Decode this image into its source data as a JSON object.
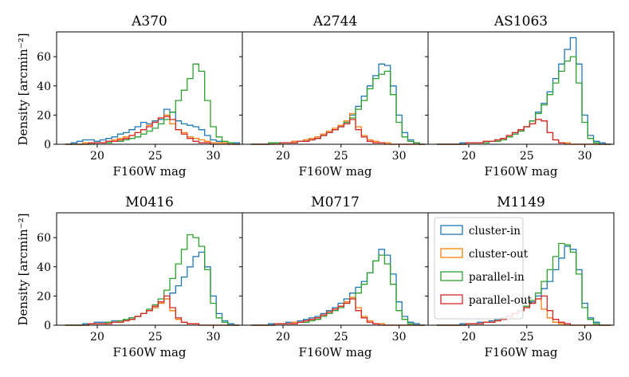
{
  "figure": {
    "xlabel": "F160W mag",
    "ylabel": "Density [arcmin⁻²]",
    "xticks": [
      20,
      25,
      30
    ],
    "yticks": [
      0,
      20,
      40,
      60
    ],
    "xlim": [
      16.5,
      32.5
    ],
    "ylim": [
      0,
      77
    ]
  },
  "legend": {
    "placement": "panel M1149, upper-left",
    "entries": [
      {
        "label": "cluster-in",
        "color": "#1f77b4"
      },
      {
        "label": "cluster-out",
        "color": "#ff7f0e"
      },
      {
        "label": "parallel-in",
        "color": "#2ca02c"
      },
      {
        "label": "parallel-out",
        "color": "#d62728"
      }
    ]
  },
  "chart_data": [
    {
      "type": "histogram-step",
      "title": "A370",
      "xlabel": "F160W mag",
      "ylabel": "Density [arcmin⁻²]",
      "x": [
        17.5,
        18.0,
        18.5,
        19.0,
        19.5,
        20.0,
        20.5,
        21.0,
        21.5,
        22.0,
        22.5,
        23.0,
        23.5,
        24.0,
        24.5,
        25.0,
        25.5,
        26.0,
        26.5,
        27.0,
        27.5,
        28.0,
        28.5,
        29.0,
        29.5,
        30.0,
        30.5,
        31.0,
        31.5,
        32.0
      ],
      "series": [
        {
          "name": "cluster-in",
          "color": "#1f77b4",
          "values": [
            0,
            1,
            2,
            3,
            3,
            2,
            3,
            4,
            5,
            7,
            8,
            10,
            12,
            15,
            14,
            16,
            17,
            24,
            22,
            16,
            14,
            13,
            12,
            10,
            6,
            3,
            2,
            1,
            1,
            1
          ]
        },
        {
          "name": "cluster-out",
          "color": "#ff7f0e",
          "values": [
            0,
            0,
            0,
            1,
            1,
            1,
            1,
            2,
            3,
            4,
            5,
            6,
            8,
            10,
            13,
            15,
            18,
            20,
            14,
            10,
            8,
            5,
            4,
            3,
            2,
            1,
            1,
            1,
            0,
            0
          ]
        },
        {
          "name": "parallel-in",
          "color": "#2ca02c",
          "values": [
            0,
            0,
            0,
            0,
            0,
            1,
            1,
            1,
            2,
            2,
            3,
            4,
            5,
            7,
            9,
            11,
            14,
            17,
            22,
            30,
            37,
            45,
            55,
            50,
            30,
            12,
            5,
            2,
            1,
            0
          ]
        },
        {
          "name": "parallel-out",
          "color": "#d62728",
          "values": [
            0,
            0,
            0,
            0,
            1,
            1,
            1,
            2,
            2,
            3,
            4,
            6,
            8,
            10,
            12,
            15,
            18,
            19,
            17,
            10,
            7,
            4,
            2,
            1,
            1,
            0,
            0,
            0,
            0,
            0
          ]
        }
      ]
    },
    {
      "type": "histogram-step",
      "title": "A2744",
      "xlabel": "F160W mag",
      "ylabel": "Density [arcmin⁻²]",
      "x": [
        17.5,
        18.0,
        18.5,
        19.0,
        19.5,
        20.0,
        20.5,
        21.0,
        21.5,
        22.0,
        22.5,
        23.0,
        23.5,
        24.0,
        24.5,
        25.0,
        25.5,
        26.0,
        26.5,
        27.0,
        27.5,
        28.0,
        28.5,
        29.0,
        29.5,
        30.0,
        30.5,
        31.0,
        31.5,
        32.0
      ],
      "series": [
        {
          "name": "cluster-in",
          "color": "#1f77b4",
          "values": [
            0,
            0,
            0,
            1,
            1,
            1,
            1,
            2,
            2,
            3,
            4,
            5,
            6,
            8,
            10,
            12,
            15,
            20,
            26,
            33,
            40,
            47,
            55,
            54,
            40,
            20,
            8,
            3,
            1,
            0
          ]
        },
        {
          "name": "cluster-out",
          "color": "#ff7f0e",
          "values": [
            0,
            0,
            0,
            0,
            1,
            1,
            1,
            2,
            2,
            3,
            4,
            5,
            7,
            9,
            11,
            13,
            16,
            21,
            12,
            6,
            3,
            2,
            1,
            1,
            0,
            0,
            0,
            0,
            0,
            0
          ]
        },
        {
          "name": "parallel-in",
          "color": "#2ca02c",
          "values": [
            0,
            0,
            0,
            1,
            1,
            1,
            1,
            1,
            2,
            2,
            3,
            4,
            6,
            8,
            10,
            12,
            15,
            18,
            24,
            30,
            38,
            45,
            48,
            50,
            34,
            15,
            5,
            2,
            1,
            0
          ]
        },
        {
          "name": "parallel-out",
          "color": "#d62728",
          "values": [
            0,
            0,
            0,
            0,
            0,
            1,
            1,
            1,
            2,
            2,
            3,
            4,
            6,
            8,
            10,
            12,
            14,
            17,
            10,
            5,
            2,
            1,
            1,
            0,
            0,
            0,
            0,
            0,
            0,
            0
          ]
        }
      ]
    },
    {
      "type": "histogram-step",
      "title": "AS1063",
      "xlabel": "F160W mag",
      "ylabel": "Density [arcmin⁻²]",
      "x": [
        17.5,
        18.0,
        18.5,
        19.0,
        19.5,
        20.0,
        20.5,
        21.0,
        21.5,
        22.0,
        22.5,
        23.0,
        23.5,
        24.0,
        24.5,
        25.0,
        25.5,
        26.0,
        26.5,
        27.0,
        27.5,
        28.0,
        28.5,
        29.0,
        29.5,
        30.0,
        30.5,
        31.0,
        31.5,
        32.0
      ],
      "series": [
        {
          "name": "cluster-in",
          "color": "#1f77b4",
          "values": [
            0,
            0,
            0,
            0,
            1,
            1,
            1,
            1,
            2,
            2,
            3,
            4,
            5,
            7,
            9,
            12,
            16,
            22,
            28,
            36,
            45,
            55,
            65,
            73,
            55,
            20,
            6,
            2,
            1,
            0
          ]
        },
        {
          "name": "cluster-out",
          "color": "#ff7f0e",
          "values": [
            0,
            0,
            0,
            0,
            0,
            1,
            1,
            1,
            2,
            2,
            3,
            4,
            6,
            8,
            10,
            12,
            14,
            17,
            16,
            8,
            3,
            1,
            1,
            0,
            0,
            0,
            0,
            0,
            0,
            0
          ]
        },
        {
          "name": "parallel-in",
          "color": "#2ca02c",
          "values": [
            0,
            0,
            0,
            0,
            0,
            1,
            1,
            1,
            1,
            2,
            2,
            3,
            5,
            7,
            9,
            12,
            16,
            21,
            27,
            34,
            42,
            50,
            57,
            60,
            42,
            15,
            4,
            1,
            0,
            0
          ]
        },
        {
          "name": "parallel-out",
          "color": "#d62728",
          "values": [
            0,
            0,
            0,
            0,
            0,
            1,
            1,
            1,
            2,
            2,
            3,
            4,
            6,
            8,
            10,
            12,
            14,
            17,
            16,
            8,
            3,
            1,
            0,
            0,
            0,
            0,
            0,
            0,
            0,
            0
          ]
        }
      ]
    },
    {
      "type": "histogram-step",
      "title": "M0416",
      "xlabel": "F160W mag",
      "ylabel": "Density [arcmin⁻²]",
      "x": [
        17.5,
        18.0,
        18.5,
        19.0,
        19.5,
        20.0,
        20.5,
        21.0,
        21.5,
        22.0,
        22.5,
        23.0,
        23.5,
        24.0,
        24.5,
        25.0,
        25.5,
        26.0,
        26.5,
        27.0,
        27.5,
        28.0,
        28.5,
        29.0,
        29.5,
        30.0,
        30.5,
        31.0,
        31.5,
        32.0
      ],
      "series": [
        {
          "name": "cluster-in",
          "color": "#1f77b4",
          "values": [
            0,
            0,
            0,
            1,
            1,
            2,
            2,
            2,
            3,
            3,
            4,
            5,
            6,
            8,
            10,
            12,
            15,
            18,
            22,
            27,
            33,
            40,
            47,
            50,
            40,
            20,
            8,
            3,
            1,
            0
          ]
        },
        {
          "name": "cluster-out",
          "color": "#ff7f0e",
          "values": [
            0,
            0,
            0,
            0,
            1,
            1,
            1,
            1,
            2,
            2,
            3,
            4,
            6,
            8,
            10,
            12,
            15,
            18,
            10,
            4,
            2,
            1,
            1,
            0,
            0,
            0,
            0,
            0,
            0,
            0
          ]
        },
        {
          "name": "parallel-in",
          "color": "#2ca02c",
          "values": [
            0,
            0,
            0,
            0,
            1,
            1,
            1,
            2,
            2,
            3,
            4,
            5,
            6,
            8,
            11,
            14,
            18,
            24,
            32,
            42,
            52,
            62,
            60,
            54,
            38,
            15,
            5,
            2,
            0,
            0
          ]
        },
        {
          "name": "parallel-out",
          "color": "#d62728",
          "values": [
            0,
            0,
            0,
            0,
            1,
            1,
            1,
            1,
            2,
            2,
            3,
            4,
            6,
            8,
            10,
            13,
            16,
            20,
            12,
            5,
            2,
            1,
            1,
            0,
            0,
            0,
            0,
            0,
            0,
            0
          ]
        }
      ]
    },
    {
      "type": "histogram-step",
      "title": "M0717",
      "xlabel": "F160W mag",
      "ylabel": "Density [arcmin⁻²]",
      "x": [
        17.5,
        18.0,
        18.5,
        19.0,
        19.5,
        20.0,
        20.5,
        21.0,
        21.5,
        22.0,
        22.5,
        23.0,
        23.5,
        24.0,
        24.5,
        25.0,
        25.5,
        26.0,
        26.5,
        27.0,
        27.5,
        28.0,
        28.5,
        29.0,
        29.5,
        30.0,
        30.5,
        31.0,
        31.5,
        32.0
      ],
      "series": [
        {
          "name": "cluster-in",
          "color": "#1f77b4",
          "values": [
            0,
            0,
            0,
            1,
            1,
            1,
            2,
            2,
            3,
            4,
            5,
            6,
            8,
            10,
            12,
            15,
            18,
            22,
            26,
            30,
            36,
            44,
            52,
            48,
            35,
            16,
            6,
            2,
            1,
            0
          ]
        },
        {
          "name": "cluster-out",
          "color": "#ff7f0e",
          "values": [
            0,
            0,
            0,
            0,
            1,
            1,
            1,
            2,
            2,
            3,
            4,
            5,
            7,
            9,
            11,
            13,
            16,
            19,
            12,
            6,
            3,
            1,
            1,
            0,
            0,
            0,
            0,
            0,
            0,
            0
          ]
        },
        {
          "name": "parallel-in",
          "color": "#2ca02c",
          "values": [
            0,
            0,
            0,
            0,
            1,
            1,
            1,
            1,
            2,
            2,
            3,
            4,
            6,
            8,
            10,
            12,
            15,
            18,
            22,
            28,
            36,
            44,
            48,
            42,
            28,
            10,
            4,
            1,
            0,
            0
          ]
        },
        {
          "name": "parallel-out",
          "color": "#d62728",
          "values": [
            0,
            0,
            0,
            0,
            1,
            1,
            1,
            1,
            2,
            3,
            4,
            5,
            7,
            9,
            11,
            13,
            15,
            18,
            10,
            5,
            2,
            1,
            0,
            0,
            0,
            0,
            0,
            0,
            0,
            0
          ]
        }
      ]
    },
    {
      "type": "histogram-step",
      "title": "M1149",
      "xlabel": "F160W mag",
      "ylabel": "Density [arcmin⁻²]",
      "x": [
        17.5,
        18.0,
        18.5,
        19.0,
        19.5,
        20.0,
        20.5,
        21.0,
        21.5,
        22.0,
        22.5,
        23.0,
        23.5,
        24.0,
        24.5,
        25.0,
        25.5,
        26.0,
        26.5,
        27.0,
        27.5,
        28.0,
        28.5,
        29.0,
        29.5,
        30.0,
        30.5,
        31.0,
        31.5,
        32.0
      ],
      "series": [
        {
          "name": "cluster-in",
          "color": "#1f77b4",
          "values": [
            0,
            0,
            0,
            0,
            1,
            1,
            1,
            2,
            2,
            3,
            4,
            5,
            6,
            8,
            10,
            13,
            16,
            20,
            25,
            30,
            38,
            46,
            54,
            52,
            38,
            15,
            5,
            2,
            0,
            0
          ]
        },
        {
          "name": "cluster-out",
          "color": "#ff7f0e",
          "values": [
            0,
            0,
            0,
            0,
            0,
            1,
            1,
            1,
            2,
            2,
            3,
            4,
            6,
            8,
            10,
            12,
            15,
            18,
            11,
            5,
            2,
            1,
            0,
            0,
            0,
            0,
            0,
            0,
            0,
            0
          ]
        },
        {
          "name": "parallel-in",
          "color": "#2ca02c",
          "values": [
            0,
            0,
            0,
            0,
            0,
            1,
            1,
            1,
            2,
            2,
            3,
            4,
            6,
            8,
            10,
            13,
            17,
            22,
            30,
            38,
            47,
            56,
            55,
            50,
            35,
            12,
            4,
            1,
            0,
            0
          ]
        },
        {
          "name": "parallel-out",
          "color": "#d62728",
          "values": [
            0,
            0,
            0,
            0,
            0,
            1,
            1,
            1,
            2,
            2,
            3,
            4,
            6,
            8,
            10,
            12,
            15,
            18,
            20,
            10,
            4,
            2,
            1,
            0,
            0,
            0,
            0,
            0,
            0,
            0
          ]
        }
      ]
    }
  ]
}
